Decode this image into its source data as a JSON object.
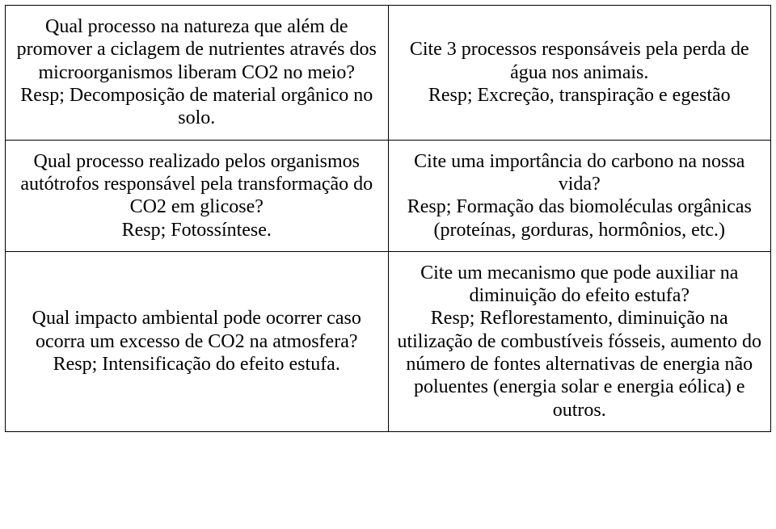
{
  "table": {
    "rows": [
      {
        "left": {
          "q": "Qual processo na natureza que além de promover a ciclagem de nutrientes através dos microorganismos liberam CO2 no meio?",
          "a": "Resp; Decomposição de material orgânico no solo."
        },
        "right": {
          "q": "Cite 3 processos responsáveis pela perda de água nos animais.",
          "a": "Resp; Excreção, transpiração e egestão"
        }
      },
      {
        "left": {
          "q": "Qual processo realizado pelos organismos autótrofos responsável pela transformação do CO2 em glicose?",
          "a": "Resp; Fotossíntese."
        },
        "right": {
          "q": "Cite uma importância do carbono na nossa vida?",
          "a": "Resp; Formação das biomoléculas orgânicas (proteínas, gorduras, hormônios, etc.)"
        }
      },
      {
        "left": {
          "q": "Qual impacto ambiental pode ocorrer caso ocorra um excesso de CO2 na atmosfera?",
          "a": "Resp; Intensificação do efeito estufa."
        },
        "right": {
          "q": "Cite um mecanismo que pode auxiliar na diminuição do efeito estufa?",
          "a": "Resp; Reflorestamento, diminuição na utilização de combustíveis fósseis, aumento do número de fontes alternativas de energia não poluentes (energia solar e energia eólica)  e outros."
        }
      }
    ]
  },
  "style": {
    "font_family": "Times New Roman",
    "font_size_pt": 18,
    "text_color": "#000000",
    "border_color": "#000000",
    "background_color": "#ffffff"
  }
}
